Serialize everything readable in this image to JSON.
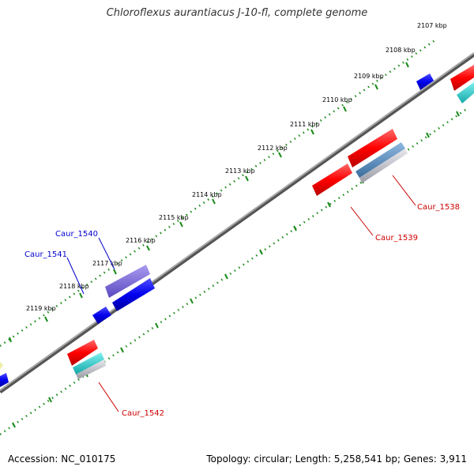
{
  "title": "Chloroflexus aurantiacus J-10-fl, complete genome",
  "footer": {
    "accession": "Accession: NC_010175",
    "info": "Topology: circular; Length: 5,258,541 bp; Genes: 3,911"
  },
  "ticks": [
    "2107 kbp",
    "2108 kbp",
    "2109 kbp",
    "2110 kbp",
    "2111 kbp",
    "2112 kbp",
    "2113 kbp",
    "2114 kbp",
    "2115 kbp",
    "2116 kbp",
    "2117 kbp",
    "2118 kbp",
    "2119 kbp"
  ],
  "gene_labels": [
    {
      "text": "Caur_1538",
      "color": "#cc0000"
    },
    {
      "text": "Caur_1539",
      "color": "#cc0000"
    },
    {
      "text": "Caur_1540",
      "color": "#0000cc"
    },
    {
      "text": "Caur_1541",
      "color": "#0000cc"
    },
    {
      "text": "Caur_1542",
      "color": "#cc0000"
    }
  ],
  "colors": {
    "backbone": "#808080",
    "tick_dots": "#1a8a1a",
    "forward_cds": "#ff0000",
    "reverse_cds": "#0000ee",
    "purple_feature": "#7b68d8",
    "cyan_feature": "#22cccc",
    "steel_feature": "#5a8fc0",
    "gray_feature": "#c0c0c8"
  }
}
